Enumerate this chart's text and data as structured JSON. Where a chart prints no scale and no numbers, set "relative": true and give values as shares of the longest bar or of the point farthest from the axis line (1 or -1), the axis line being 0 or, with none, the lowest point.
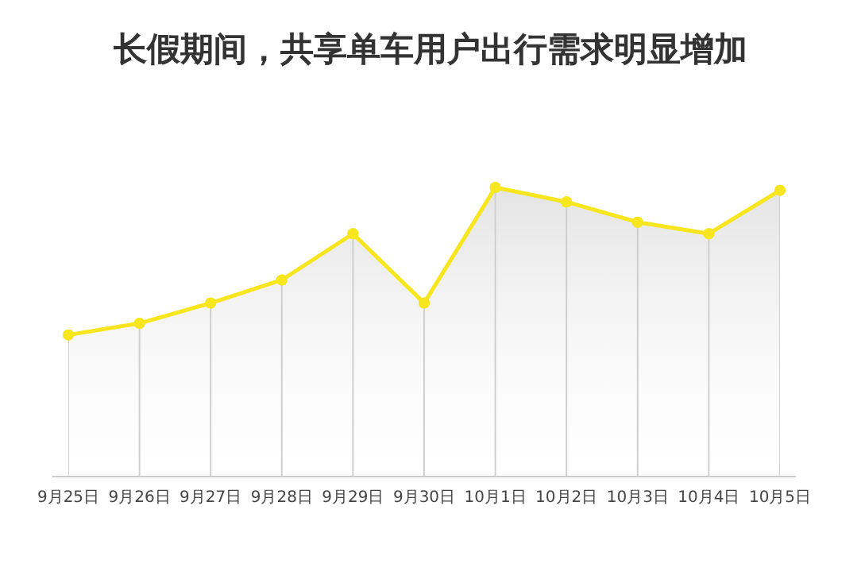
{
  "chart_data": {
    "type": "area",
    "title": "长假期间，共享单车用户出行需求明显增加",
    "relative": true,
    "grid": "x",
    "marker": "circle",
    "categories": [
      "9月25日",
      "9月26日",
      "9月27日",
      "9月28日",
      "9月29日",
      "9月30日",
      "10月1日",
      "10月2日",
      "10月3日",
      "10月4日",
      "10月5日"
    ],
    "series": [
      {
        "color": "#f7e51e",
        "values": [
          0.49,
          0.53,
          0.6,
          0.68,
          0.84,
          0.6,
          1,
          0.95,
          0.88,
          0.84,
          0.99
        ]
      }
    ]
  }
}
